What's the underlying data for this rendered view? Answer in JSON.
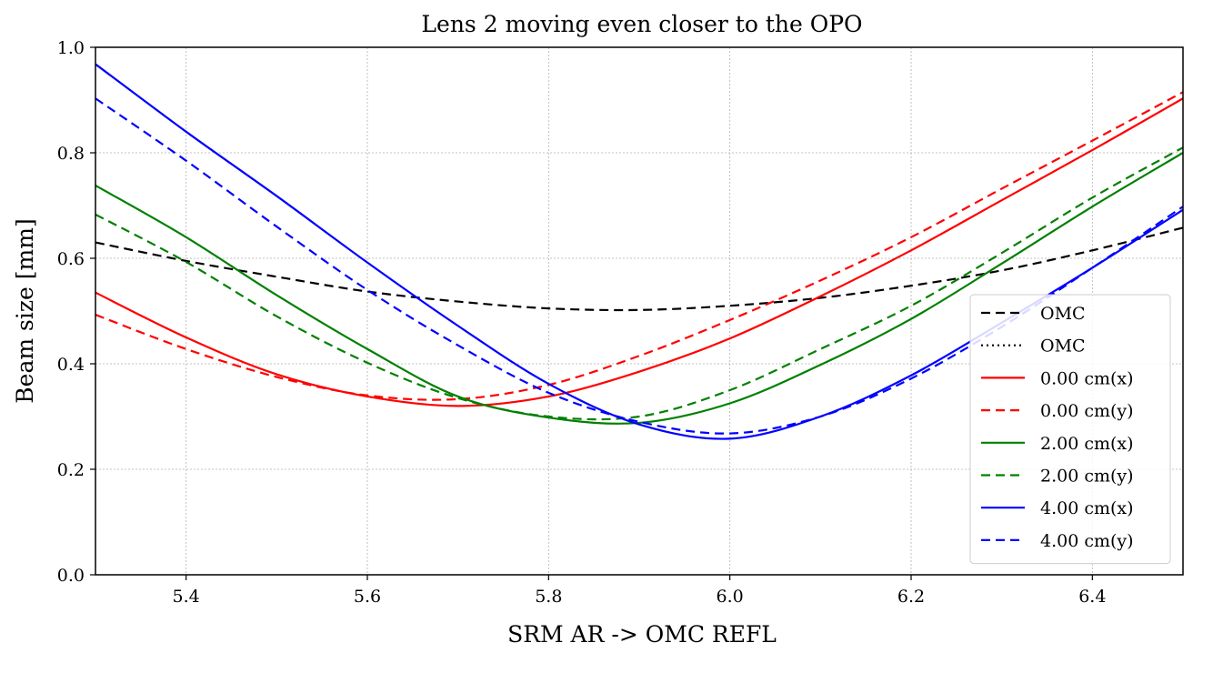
{
  "chart_data": {
    "type": "line",
    "title": "Lens 2 moving even closer to the OPO",
    "xlabel": "SRM AR -> OMC REFL",
    "ylabel": "Beam size [mm]",
    "xlim": [
      5.3,
      6.5
    ],
    "ylim": [
      0.0,
      1.0
    ],
    "xticks": [
      "5.4",
      "5.6",
      "5.8",
      "6.0",
      "6.2",
      "6.4"
    ],
    "yticks": [
      "0.0",
      "0.2",
      "0.4",
      "0.6",
      "0.8",
      "1.0"
    ],
    "grid": true,
    "legend_position": "lower-right",
    "series": [
      {
        "name": "OMC",
        "color": "#000000",
        "style": "dashed",
        "x": [
          5.3,
          5.4,
          5.5,
          5.6,
          5.7,
          5.8,
          5.9,
          6.0,
          6.1,
          6.2,
          6.3,
          6.4,
          6.5
        ],
        "y": [
          0.63,
          0.595,
          0.565,
          0.537,
          0.518,
          0.505,
          0.502,
          0.51,
          0.525,
          0.548,
          0.577,
          0.615,
          0.658
        ]
      },
      {
        "name": "OMC",
        "color": "#000000",
        "style": "dotted",
        "x": [],
        "y": []
      },
      {
        "name": "0.00 cm(x)",
        "color": "#ff0000",
        "style": "solid",
        "x": [
          5.3,
          5.4,
          5.5,
          5.6,
          5.7,
          5.8,
          5.9,
          6.0,
          6.1,
          6.2,
          6.3,
          6.4,
          6.5
        ],
        "y": [
          0.535,
          0.45,
          0.38,
          0.338,
          0.32,
          0.338,
          0.385,
          0.448,
          0.528,
          0.615,
          0.71,
          0.805,
          0.903
        ]
      },
      {
        "name": "0.00 cm(y)",
        "color": "#ff0000",
        "style": "dashed",
        "x": [
          5.3,
          5.4,
          5.5,
          5.6,
          5.7,
          5.8,
          5.9,
          6.0,
          6.1,
          6.2,
          6.3,
          6.4,
          6.5
        ],
        "y": [
          0.493,
          0.428,
          0.375,
          0.34,
          0.333,
          0.36,
          0.415,
          0.483,
          0.558,
          0.64,
          0.732,
          0.823,
          0.915
        ]
      },
      {
        "name": "2.00 cm(x)",
        "color": "#008000",
        "style": "solid",
        "x": [
          5.3,
          5.4,
          5.5,
          5.6,
          5.7,
          5.8,
          5.9,
          6.0,
          6.1,
          6.2,
          6.3,
          6.4,
          6.5
        ],
        "y": [
          0.738,
          0.64,
          0.53,
          0.428,
          0.338,
          0.298,
          0.288,
          0.325,
          0.398,
          0.485,
          0.59,
          0.698,
          0.8
        ]
      },
      {
        "name": "2.00 cm(y)",
        "color": "#008000",
        "style": "dashed",
        "x": [
          5.3,
          5.4,
          5.5,
          5.6,
          5.7,
          5.8,
          5.9,
          6.0,
          6.1,
          6.2,
          6.3,
          6.4,
          6.5
        ],
        "y": [
          0.683,
          0.593,
          0.49,
          0.402,
          0.335,
          0.3,
          0.3,
          0.35,
          0.428,
          0.51,
          0.61,
          0.715,
          0.81
        ]
      },
      {
        "name": "4.00 cm(x)",
        "color": "#0000ff",
        "style": "solid",
        "x": [
          5.3,
          5.4,
          5.5,
          5.6,
          5.7,
          5.8,
          5.9,
          6.0,
          6.1,
          6.2,
          6.3,
          6.4,
          6.5
        ],
        "y": [
          0.968,
          0.84,
          0.718,
          0.592,
          0.472,
          0.362,
          0.285,
          0.258,
          0.3,
          0.378,
          0.478,
          0.582,
          0.692
        ]
      },
      {
        "name": "4.00 cm(y)",
        "color": "#0000ff",
        "style": "dashed",
        "x": [
          5.3,
          5.4,
          5.5,
          5.6,
          5.7,
          5.8,
          5.9,
          6.0,
          6.1,
          6.2,
          6.3,
          6.4,
          6.5
        ],
        "y": [
          0.903,
          0.785,
          0.66,
          0.54,
          0.435,
          0.345,
          0.29,
          0.268,
          0.3,
          0.372,
          0.47,
          0.582,
          0.698
        ]
      }
    ]
  }
}
